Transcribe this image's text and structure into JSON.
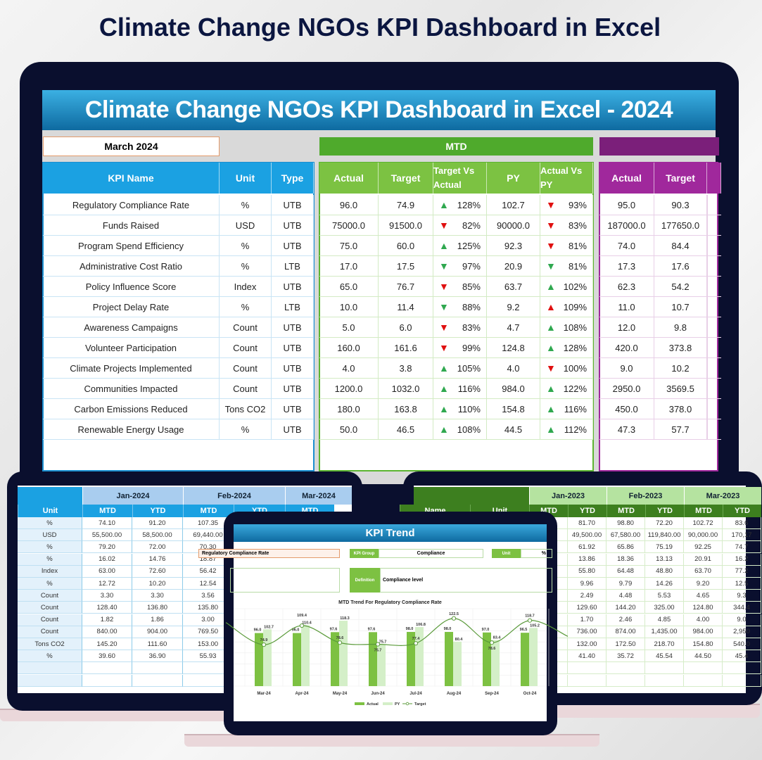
{
  "page_title": "Climate Change NGOs KPI Dashboard in Excel",
  "colors": {
    "navy": "#0b1640",
    "blue": "#1ba1e2",
    "green": "#5cb531",
    "purple": "#a0289c",
    "up_good": "#2fa84f",
    "down_bad": "#e01010"
  },
  "main": {
    "banner": "Climate Change NGOs KPI Dashboard in Excel - 2024",
    "month": "March 2024",
    "mtd_label": "MTD",
    "ytd_label": "",
    "headers": {
      "kpi": "KPI Name",
      "unit": "Unit",
      "type": "Type",
      "actual": "Actual",
      "target": "Target",
      "tva": "Target Vs Actual",
      "py": "PY",
      "avpy": "Actual Vs PY",
      "ytd_actual": "Actual",
      "ytd_target": "Target"
    },
    "rows": [
      {
        "kpi": "Regulatory Compliance Rate",
        "unit": "%",
        "type": "UTB",
        "actual": "96.0",
        "target": "74.9",
        "tva": "128%",
        "tva_icon": "up-green",
        "py": "102.7",
        "avpy": "93%",
        "avpy_icon": "down-red",
        "ytd_actual": "95.0",
        "ytd_target": "90.3"
      },
      {
        "kpi": "Funds Raised",
        "unit": "USD",
        "type": "UTB",
        "actual": "75000.0",
        "target": "91500.0",
        "tva": "82%",
        "tva_icon": "down-red",
        "py": "90000.0",
        "avpy": "83%",
        "avpy_icon": "down-red",
        "ytd_actual": "187000.0",
        "ytd_target": "177650.0"
      },
      {
        "kpi": "Program Spend Efficiency",
        "unit": "%",
        "type": "UTB",
        "actual": "75.0",
        "target": "60.0",
        "tva": "125%",
        "tva_icon": "up-green",
        "py": "92.3",
        "avpy": "81%",
        "avpy_icon": "down-red",
        "ytd_actual": "74.0",
        "ytd_target": "84.4"
      },
      {
        "kpi": "Administrative Cost Ratio",
        "unit": "%",
        "type": "LTB",
        "actual": "17.0",
        "target": "17.5",
        "tva": "97%",
        "tva_icon": "down-green",
        "py": "20.9",
        "avpy": "81%",
        "avpy_icon": "down-green",
        "ytd_actual": "17.3",
        "ytd_target": "17.6"
      },
      {
        "kpi": "Policy Influence Score",
        "unit": "Index",
        "type": "UTB",
        "actual": "65.0",
        "target": "76.7",
        "tva": "85%",
        "tva_icon": "down-red",
        "py": "63.7",
        "avpy": "102%",
        "avpy_icon": "up-green",
        "ytd_actual": "62.3",
        "ytd_target": "54.2"
      },
      {
        "kpi": "Project Delay Rate",
        "unit": "%",
        "type": "LTB",
        "actual": "10.0",
        "target": "11.4",
        "tva": "88%",
        "tva_icon": "down-green",
        "py": "9.2",
        "avpy": "109%",
        "avpy_icon": "up-red",
        "ytd_actual": "11.0",
        "ytd_target": "10.7"
      },
      {
        "kpi": "Awareness Campaigns",
        "unit": "Count",
        "type": "UTB",
        "actual": "5.0",
        "target": "6.0",
        "tva": "83%",
        "tva_icon": "down-red",
        "py": "4.7",
        "avpy": "108%",
        "avpy_icon": "up-green",
        "ytd_actual": "12.0",
        "ytd_target": "9.8"
      },
      {
        "kpi": "Volunteer Participation",
        "unit": "Count",
        "type": "UTB",
        "actual": "160.0",
        "target": "161.6",
        "tva": "99%",
        "tva_icon": "down-red",
        "py": "124.8",
        "avpy": "128%",
        "avpy_icon": "up-green",
        "ytd_actual": "420.0",
        "ytd_target": "373.8"
      },
      {
        "kpi": "Climate Projects Implemented",
        "unit": "Count",
        "type": "UTB",
        "actual": "4.0",
        "target": "3.8",
        "tva": "105%",
        "tva_icon": "up-green",
        "py": "4.0",
        "avpy": "100%",
        "avpy_icon": "down-red",
        "ytd_actual": "9.0",
        "ytd_target": "10.2"
      },
      {
        "kpi": "Communities Impacted",
        "unit": "Count",
        "type": "UTB",
        "actual": "1200.0",
        "target": "1032.0",
        "tva": "116%",
        "tva_icon": "up-green",
        "py": "984.0",
        "avpy": "122%",
        "avpy_icon": "up-green",
        "ytd_actual": "2950.0",
        "ytd_target": "3569.5"
      },
      {
        "kpi": "Carbon Emissions Reduced",
        "unit": "Tons CO2",
        "type": "UTB",
        "actual": "180.0",
        "target": "163.8",
        "tva": "110%",
        "tva_icon": "up-green",
        "py": "154.8",
        "avpy": "116%",
        "avpy_icon": "up-green",
        "ytd_actual": "450.0",
        "ytd_target": "378.0"
      },
      {
        "kpi": "Renewable Energy Usage",
        "unit": "%",
        "type": "UTB",
        "actual": "50.0",
        "target": "46.5",
        "tva": "108%",
        "tva_icon": "up-green",
        "py": "44.5",
        "avpy": "112%",
        "avpy_icon": "up-green",
        "ytd_actual": "47.3",
        "ytd_target": "57.7"
      }
    ]
  },
  "left_sheet": {
    "months": [
      "Jan-2024",
      "Feb-2024",
      "Mar-2024"
    ],
    "subheaders": [
      "Unit",
      "MTD",
      "YTD",
      "MTD",
      "YTD",
      "MTD"
    ],
    "rows": [
      [
        "%",
        "74.10",
        "91.20",
        "107.35"
      ],
      [
        "USD",
        "55,500.00",
        "58,500.00",
        "69,440.00"
      ],
      [
        "%",
        "79.20",
        "72.00",
        "70.30"
      ],
      [
        "%",
        "16.02",
        "14.76",
        "18.87"
      ],
      [
        "Index",
        "63.00",
        "72.60",
        "56.42"
      ],
      [
        "%",
        "12.72",
        "10.20",
        "12.54"
      ],
      [
        "Count",
        "3.30",
        "3.30",
        "3.56"
      ],
      [
        "Count",
        "128.40",
        "136.80",
        "135.80"
      ],
      [
        "Count",
        "1.82",
        "1.86",
        "3.00"
      ],
      [
        "Count",
        "840.00",
        "904.00",
        "769.50"
      ],
      [
        "Tons CO2",
        "145.20",
        "111.60",
        "153.00"
      ],
      [
        "%",
        "39.60",
        "36.90",
        "55.93"
      ]
    ]
  },
  "right_sheet": {
    "months": [
      "Jan-2023",
      "Feb-2023",
      "Mar-2023"
    ],
    "subheaders": [
      "Name",
      "Unit",
      "MTD",
      "YTD",
      "MTD",
      "YTD",
      "MTD",
      "YTD"
    ],
    "rows": [
      [
        "81.70",
        "98.80",
        "72.20",
        "102.72",
        "83.6"
      ],
      [
        "49,500.00",
        "67,580.00",
        "119,840.00",
        "90,000.00",
        "170,17"
      ],
      [
        "61.92",
        "65.86",
        "75.19",
        "92.25",
        "74.7"
      ],
      [
        "13.86",
        "18.36",
        "13.13",
        "20.91",
        "16.2"
      ],
      [
        "55.80",
        "64.48",
        "48.80",
        "63.70",
        "77.2"
      ],
      [
        "9.96",
        "9.79",
        "14.26",
        "9.20",
        "12.5"
      ],
      [
        "2.49",
        "4.48",
        "5.53",
        "4.65",
        "9.3"
      ],
      [
        "129.60",
        "144.20",
        "325.00",
        "124.80",
        "344.4"
      ],
      [
        "1.70",
        "2.46",
        "4.85",
        "4.00",
        "9.0"
      ],
      [
        "736.00",
        "874.00",
        "1,435.00",
        "984.00",
        "2,950"
      ],
      [
        "132.00",
        "172.50",
        "218.70",
        "154.80",
        "540.0"
      ],
      [
        "41.40",
        "35.72",
        "45.54",
        "44.50",
        "45.4"
      ]
    ]
  },
  "trend": {
    "banner": "KPI Trend",
    "kpi_name": "Regulatory Compliance Rate",
    "kpi_group_label": "KPI Group",
    "kpi_group": "Compliance",
    "unit_label": "Unit",
    "unit": "%",
    "definition_label": "Definition",
    "definition": "Compliance level"
  },
  "chart_data": {
    "type": "bar",
    "title": "MTD Trend For Regulatory Compliance Rate",
    "categories": [
      "Mar-24",
      "Apr-24",
      "May-24",
      "Jun-24",
      "Jul-24",
      "Aug-24",
      "Sep-24",
      "Oct-24"
    ],
    "series": [
      {
        "name": "Actual",
        "type": "bar",
        "color": "#7dc142",
        "values": [
          96.0,
          96.0,
          97.6,
          97.6,
          98.0,
          98.0,
          97.0,
          96.5
        ]
      },
      {
        "name": "PY",
        "type": "bar",
        "color": "#d4efc8",
        "values": [
          102.7,
          110.4,
          118.3,
          75.7,
          106.8,
          80.4,
          83.4,
          105.2
        ]
      },
      {
        "name": "Target",
        "type": "line",
        "color": "#5a9a3a",
        "values": [
          74.9,
          109.4,
          78.6,
          75.7,
          77.4,
          122.5,
          78.6,
          118.7
        ]
      }
    ],
    "ylim": [
      0,
      140
    ],
    "grid": true,
    "legend": "bottom"
  }
}
